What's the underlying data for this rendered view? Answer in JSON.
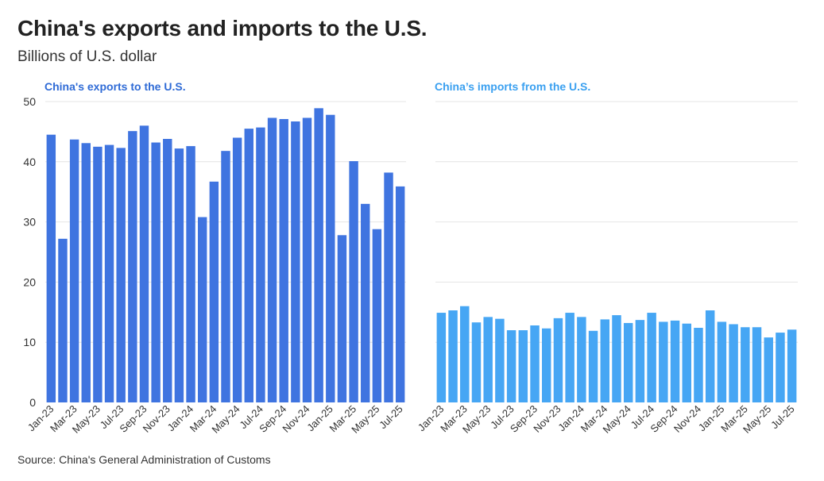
{
  "header": {
    "title": "China's exports and imports to the U.S.",
    "subtitle": "Billions of U.S. dollar"
  },
  "footer": {
    "source": "Source: China's General Administration of Customs"
  },
  "colors": {
    "exports": "#3f74e0",
    "imports": "#46a6f4",
    "exports_title": "#2f6bd6",
    "imports_title": "#3aa0f0",
    "grid": "#e4e4e4"
  },
  "chart_data": [
    {
      "type": "bar",
      "title": "China's exports to the U.S.",
      "ylim": [
        0,
        50
      ],
      "yticks": [
        0,
        10,
        20,
        30,
        40,
        50
      ],
      "show_y_tick_labels": true,
      "grid": true,
      "x_tick_labels": [
        "Jan-23",
        "Mar-23",
        "May-23",
        "Jul-23",
        "Sep-23",
        "Nov-23",
        "Jan-24",
        "Mar-24",
        "May-24",
        "Jul-24",
        "Sep-24",
        "Nov-24",
        "Jan-25",
        "Mar-25",
        "May-25",
        "Jul-25"
      ],
      "categories": [
        "Jan-23",
        "Feb-23",
        "Mar-23",
        "Apr-23",
        "May-23",
        "Jun-23",
        "Jul-23",
        "Aug-23",
        "Sep-23",
        "Oct-23",
        "Nov-23",
        "Dec-23",
        "Jan-24",
        "Feb-24",
        "Mar-24",
        "Apr-24",
        "May-24",
        "Jun-24",
        "Jul-24",
        "Aug-24",
        "Sep-24",
        "Oct-24",
        "Nov-24",
        "Dec-24",
        "Jan-25",
        "Feb-25",
        "Mar-25",
        "Apr-25",
        "May-25",
        "Jun-25",
        "Jul-25"
      ],
      "values": [
        44.5,
        27.2,
        43.7,
        43.1,
        42.5,
        42.8,
        42.3,
        45.1,
        46.0,
        43.2,
        43.8,
        42.2,
        42.6,
        30.8,
        36.7,
        41.8,
        44.0,
        45.5,
        45.7,
        47.3,
        47.1,
        46.7,
        47.3,
        48.9,
        47.8,
        27.8,
        40.1,
        33.0,
        28.8,
        38.2,
        35.9
      ]
    },
    {
      "type": "bar",
      "title": "China’s imports from the U.S.",
      "ylim": [
        0,
        50
      ],
      "yticks": [
        0,
        10,
        20,
        30,
        40,
        50
      ],
      "show_y_tick_labels": false,
      "grid": true,
      "x_tick_labels": [
        "Jan-23",
        "Mar-23",
        "May-23",
        "Jul-23",
        "Sep-23",
        "Nov-23",
        "Jan-24",
        "Mar-24",
        "May-24",
        "Jul-24",
        "Sep-24",
        "Nov-24",
        "Jan-25",
        "Mar-25",
        "May-25",
        "Jul-25"
      ],
      "categories": [
        "Jan-23",
        "Feb-23",
        "Mar-23",
        "Apr-23",
        "May-23",
        "Jun-23",
        "Jul-23",
        "Aug-23",
        "Sep-23",
        "Oct-23",
        "Nov-23",
        "Dec-23",
        "Jan-24",
        "Feb-24",
        "Mar-24",
        "Apr-24",
        "May-24",
        "Jun-24",
        "Jul-24",
        "Aug-24",
        "Sep-24",
        "Oct-24",
        "Nov-24",
        "Dec-24",
        "Jan-25",
        "Feb-25",
        "Mar-25",
        "Apr-25",
        "May-25",
        "Jun-25",
        "Jul-25"
      ],
      "values": [
        14.9,
        15.3,
        16.0,
        13.3,
        14.2,
        13.9,
        12.0,
        12.0,
        12.8,
        12.3,
        14.0,
        14.9,
        14.2,
        11.9,
        13.8,
        14.5,
        13.2,
        13.7,
        14.9,
        13.4,
        13.6,
        13.1,
        12.4,
        15.3,
        13.4,
        13.0,
        12.5,
        12.5,
        10.8,
        11.6,
        12.1
      ]
    }
  ]
}
